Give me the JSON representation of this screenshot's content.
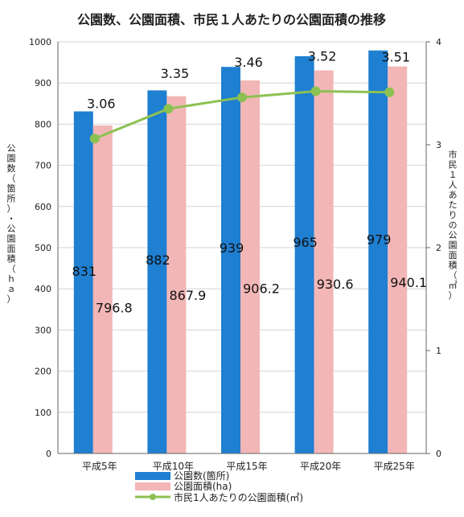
{
  "chart_data": {
    "type": "bar",
    "title": "公園数、公園面積、市民１人あたりの公園面積の推移",
    "ylabel": "公園数（箇所）・公園面積（ｈａ）",
    "y2label": "市民１人あたりの公園面積（㎡）",
    "ylim": [
      0,
      1000
    ],
    "y2lim": [
      0,
      4
    ],
    "yticks": [
      "0",
      "100",
      "200",
      "300",
      "400",
      "500",
      "600",
      "700",
      "800",
      "900",
      "1000"
    ],
    "y2ticks": [
      "0",
      "1",
      "2",
      "3",
      "4"
    ],
    "categories": [
      "平成5年",
      "平成10年",
      "平成15年",
      "平成20年",
      "平成25年"
    ],
    "series": [
      {
        "name": "公園数(箇所)",
        "type": "bar",
        "axis": "left",
        "color": "#1f7fd1",
        "values": [
          831,
          882,
          939,
          965,
          979
        ],
        "labels": [
          "831",
          "882",
          "939",
          "965",
          "979"
        ]
      },
      {
        "name": "公園面積(ha)",
        "type": "bar",
        "axis": "left",
        "color": "#f3b6b6",
        "values": [
          796.8,
          867.9,
          906.2,
          930.6,
          940.1
        ],
        "labels": [
          "796.8",
          "867.9",
          "906.2",
          "930.6",
          "940.1"
        ]
      },
      {
        "name": "市民1人あたりの公園面積(㎡)",
        "type": "line",
        "axis": "right",
        "color": "#8cc152",
        "values": [
          3.06,
          3.35,
          3.46,
          3.52,
          3.51
        ],
        "labels": [
          "3.06",
          "3.35",
          "3.46",
          "3.52",
          "3.51"
        ]
      }
    ],
    "grid": true,
    "legend": "bottom"
  }
}
